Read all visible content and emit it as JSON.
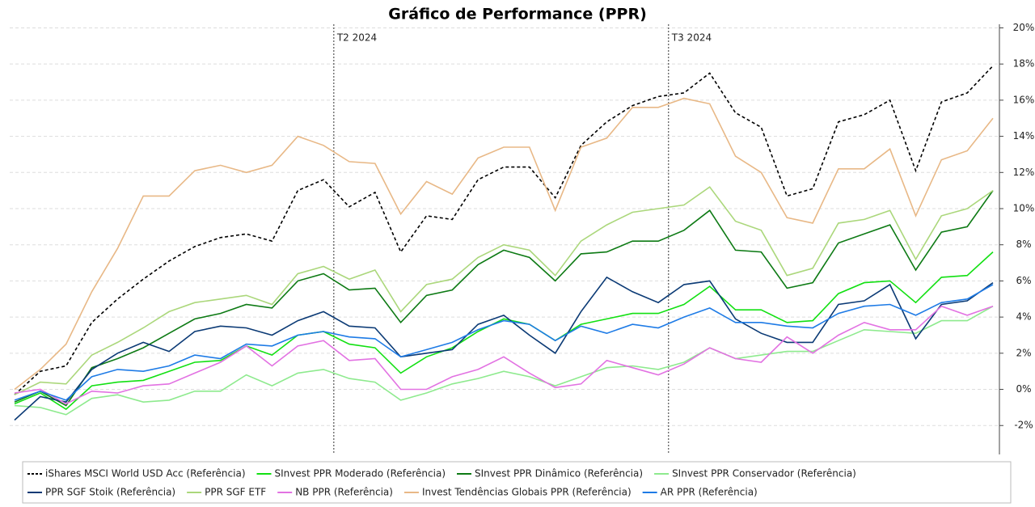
{
  "chart_data": {
    "type": "line",
    "title": "Gráfico de Performance (PPR)",
    "categories": [
      null,
      null,
      null,
      null,
      null,
      null,
      null,
      null,
      null,
      null,
      null,
      null,
      null,
      null,
      null,
      null,
      null,
      null,
      null,
      null,
      null,
      null,
      null,
      null,
      null,
      null,
      null,
      null,
      null,
      null,
      null,
      null,
      null,
      null,
      null,
      null,
      null,
      null,
      null
    ],
    "ylim": [
      -3.6,
      20.2
    ],
    "yticks": [
      {
        "value": -2,
        "label": "-2%"
      },
      {
        "value": 0,
        "label": "0%"
      },
      {
        "value": 2,
        "label": "2%"
      },
      {
        "value": 4,
        "label": "4%"
      },
      {
        "value": 6,
        "label": "6%"
      },
      {
        "value": 8,
        "label": "8%"
      },
      {
        "value": 10,
        "label": "10%"
      },
      {
        "value": 12,
        "label": "12%"
      },
      {
        "value": 14,
        "label": "14%"
      },
      {
        "value": 16,
        "label": "16%"
      },
      {
        "value": 18,
        "label": "18%"
      },
      {
        "value": 20,
        "label": "20%"
      }
    ],
    "grid": true,
    "annotations": [
      {
        "label": "T2 2024",
        "x": 12.4
      },
      {
        "label": "T3 2024",
        "x": 25.4
      }
    ],
    "series": [
      {
        "name": "iShares MSCI World USD Acc (Referência)",
        "color": "#000000",
        "dashed": true,
        "values": [
          -0.3,
          1.0,
          1.3,
          3.7,
          5.0,
          6.1,
          7.1,
          7.9,
          8.4,
          8.6,
          8.2,
          11.0,
          11.6,
          10.1,
          10.9,
          7.6,
          9.6,
          9.4,
          11.6,
          12.3,
          12.3,
          10.6,
          13.5,
          14.8,
          15.7,
          16.2,
          16.4,
          17.5,
          15.3,
          14.5,
          10.7,
          11.1,
          14.8,
          15.2,
          16.0,
          12.1,
          15.9,
          16.4,
          17.9
        ]
      },
      {
        "name": "SInvest PPR Moderado (Referência)",
        "color": "#12e012",
        "values": [
          -0.8,
          -0.2,
          -1.1,
          0.2,
          0.4,
          0.5,
          1.0,
          1.5,
          1.6,
          2.4,
          1.9,
          3.0,
          3.2,
          2.5,
          2.3,
          0.9,
          1.8,
          2.3,
          3.2,
          3.9,
          3.6,
          2.7,
          3.6,
          3.9,
          4.2,
          4.2,
          4.7,
          5.7,
          4.4,
          4.4,
          3.7,
          3.8,
          5.3,
          5.9,
          6.0,
          4.8,
          6.2,
          6.3,
          7.6
        ]
      },
      {
        "name": "SInvest PPR Dinâmico (Referência)",
        "color": "#0d7a14",
        "values": [
          -0.7,
          -0.1,
          -0.9,
          1.2,
          1.7,
          2.3,
          3.1,
          3.9,
          4.2,
          4.7,
          4.5,
          6.0,
          6.4,
          5.5,
          5.6,
          3.7,
          5.2,
          5.5,
          6.9,
          7.7,
          7.3,
          6.0,
          7.5,
          7.6,
          8.2,
          8.2,
          8.8,
          9.9,
          7.7,
          7.6,
          5.6,
          5.9,
          8.1,
          8.6,
          9.1,
          6.6,
          8.7,
          9.0,
          11.0
        ]
      },
      {
        "name": "SInvest PPR Conservador (Referência)",
        "color": "#8eea8e",
        "values": [
          -0.9,
          -1.0,
          -1.4,
          -0.5,
          -0.3,
          -0.7,
          -0.6,
          -0.1,
          -0.1,
          0.8,
          0.2,
          0.9,
          1.1,
          0.6,
          0.4,
          -0.6,
          -0.2,
          0.3,
          0.6,
          1.0,
          0.7,
          0.2,
          0.7,
          1.2,
          1.3,
          1.1,
          1.5,
          2.3,
          1.7,
          1.9,
          2.1,
          2.1,
          2.7,
          3.3,
          3.2,
          3.1,
          3.8,
          3.8,
          4.6
        ]
      },
      {
        "name": "PPR SGF Stoik (Referência)",
        "color": "#0b3a75",
        "values": [
          -1.7,
          -0.4,
          -0.7,
          1.1,
          2.0,
          2.6,
          2.1,
          3.2,
          3.5,
          3.4,
          3.0,
          3.8,
          4.3,
          3.5,
          3.4,
          1.8,
          2.0,
          2.2,
          3.6,
          4.1,
          3.0,
          2.0,
          4.3,
          6.2,
          5.4,
          4.8,
          5.8,
          6.0,
          3.9,
          3.1,
          2.6,
          2.6,
          4.7,
          4.9,
          5.8,
          2.8,
          4.7,
          4.9,
          5.9
        ]
      },
      {
        "name": "PPR SGF ETF",
        "color": "#abd77b",
        "values": [
          -0.3,
          0.4,
          0.3,
          1.9,
          2.6,
          3.4,
          4.3,
          4.8,
          5.0,
          5.2,
          4.7,
          6.4,
          6.8,
          6.1,
          6.6,
          4.3,
          5.8,
          6.1,
          7.3,
          8.0,
          7.7,
          6.3,
          8.2,
          9.1,
          9.8,
          10.0,
          10.2,
          11.2,
          9.3,
          8.8,
          6.3,
          6.7,
          9.2,
          9.4,
          9.9,
          7.2,
          9.6,
          10.0,
          11.0
        ]
      },
      {
        "name": "NB PPR (Referência)",
        "color": "#e272e2",
        "values": [
          -0.2,
          0.0,
          -0.8,
          -0.1,
          -0.2,
          0.2,
          0.3,
          0.9,
          1.5,
          2.4,
          1.3,
          2.4,
          2.7,
          1.6,
          1.7,
          0.0,
          0.0,
          0.7,
          1.1,
          1.8,
          0.9,
          0.1,
          0.3,
          1.6,
          1.2,
          0.8,
          1.4,
          2.3,
          1.7,
          1.5,
          2.9,
          2.0,
          3.0,
          3.7,
          3.3,
          3.3,
          4.6,
          4.1,
          4.6
        ]
      },
      {
        "name": "Invest Tendências Globais PPR (Referência)",
        "color": "#e8b886",
        "values": [
          0.0,
          1.1,
          2.5,
          5.4,
          7.8,
          10.7,
          10.7,
          12.1,
          12.4,
          12.0,
          12.4,
          14.0,
          13.5,
          12.6,
          12.5,
          9.7,
          11.5,
          10.8,
          12.8,
          13.4,
          13.4,
          9.9,
          13.4,
          13.9,
          15.6,
          15.6,
          16.1,
          15.8,
          12.9,
          12.0,
          9.5,
          9.2,
          12.2,
          12.2,
          13.3,
          9.6,
          12.7,
          13.2,
          15.0
        ]
      },
      {
        "name": "AR PPR (Referência)",
        "color": "#1e7be6",
        "values": [
          -0.6,
          -0.1,
          -0.6,
          0.7,
          1.1,
          1.0,
          1.3,
          1.9,
          1.7,
          2.5,
          2.4,
          3.0,
          3.2,
          2.9,
          2.8,
          1.8,
          2.2,
          2.6,
          3.3,
          3.8,
          3.6,
          2.7,
          3.5,
          3.1,
          3.6,
          3.4,
          4.0,
          4.5,
          3.7,
          3.7,
          3.5,
          3.4,
          4.2,
          4.6,
          4.7,
          4.1,
          4.8,
          5.0,
          5.8
        ]
      }
    ]
  }
}
